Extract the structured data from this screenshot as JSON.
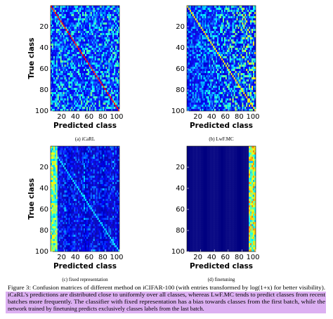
{
  "figure": {
    "panels": [
      {
        "subcaption": "(a) iCaRL",
        "xlabel": "Predicted class",
        "ylabel": "True class",
        "xticks": [
          20,
          40,
          60,
          80,
          100
        ],
        "yticks": [
          20,
          40,
          60,
          80,
          100
        ]
      },
      {
        "subcaption": "(b) LwF.MC",
        "xlabel": "Predicted class",
        "xticks": [
          20,
          40,
          60,
          80,
          100
        ],
        "yticks": [
          20,
          40,
          60,
          80,
          100
        ]
      },
      {
        "subcaption": "(c) fixed representation",
        "xlabel": "Predicted class",
        "ylabel": "True class",
        "xticks": [
          20,
          40,
          60,
          80,
          100
        ],
        "yticks": [
          20,
          40,
          60,
          80,
          100
        ]
      },
      {
        "subcaption": "(d) finetuning",
        "xlabel": "Predicted class",
        "xticks": [
          20,
          40,
          60,
          80,
          100
        ],
        "yticks": [
          20,
          40,
          60,
          80,
          100
        ]
      }
    ],
    "caption": [
      "Figure 3: Confusion matrices of different method on iCIFAR-100 (with entries transformed by log(1+x) for better visibility).",
      "iCaRL's predictions are distributed close to uniformly over all classes, whereas LwF.MC tends to predict classes from recent",
      "batches more frequently. The classifier with fixed representation has a bias towards classes from the first batch, while the",
      "network trained by finetuning predicts exclusively classes labels from the last batch."
    ]
  }
}
